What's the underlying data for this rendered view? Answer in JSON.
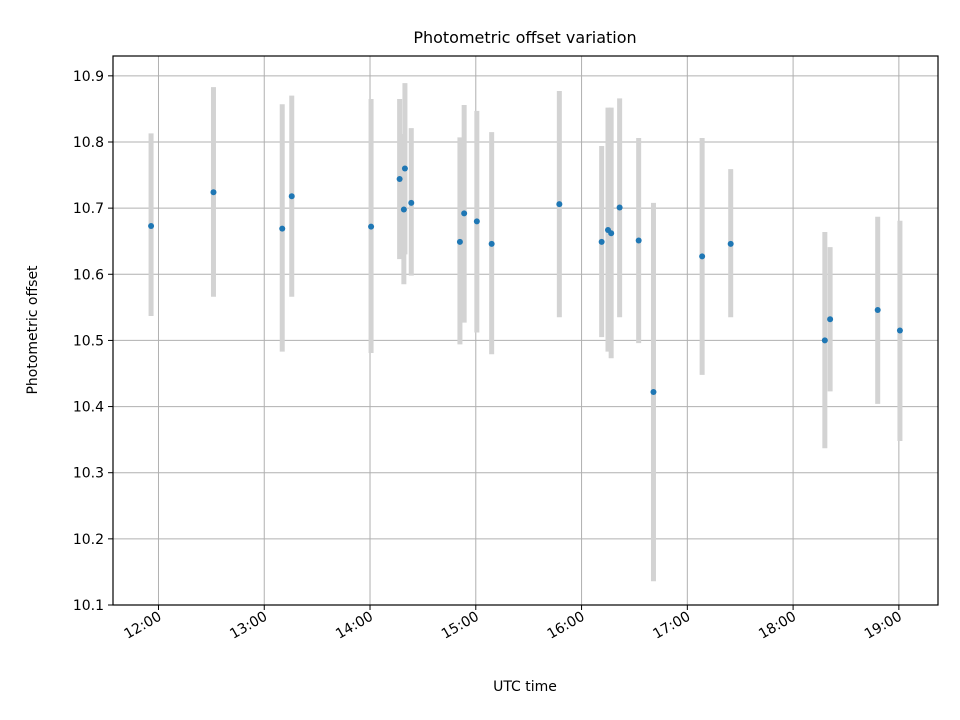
{
  "chart_data": {
    "type": "scatter",
    "title": "Photometric offset variation",
    "xlabel": "UTC time",
    "ylabel": "Photometric offset",
    "xlim": [
      11.57,
      19.37
    ],
    "ylim": [
      10.1,
      10.93
    ],
    "x_ticks": [
      {
        "value": 12,
        "label": "12:00"
      },
      {
        "value": 13,
        "label": "13:00"
      },
      {
        "value": 14,
        "label": "14:00"
      },
      {
        "value": 15,
        "label": "15:00"
      },
      {
        "value": 16,
        "label": "16:00"
      },
      {
        "value": 17,
        "label": "17:00"
      },
      {
        "value": 18,
        "label": "18:00"
      },
      {
        "value": 19,
        "label": "19:00"
      }
    ],
    "y_ticks": [
      {
        "value": 10.1,
        "label": "10.1"
      },
      {
        "value": 10.2,
        "label": "10.2"
      },
      {
        "value": 10.3,
        "label": "10.3"
      },
      {
        "value": 10.4,
        "label": "10.4"
      },
      {
        "value": 10.5,
        "label": "10.5"
      },
      {
        "value": 10.6,
        "label": "10.6"
      },
      {
        "value": 10.7,
        "label": "10.7"
      },
      {
        "value": 10.8,
        "label": "10.8"
      },
      {
        "value": 10.9,
        "label": "10.9"
      }
    ],
    "grid": true,
    "colors": {
      "point": "#1f77b4",
      "errorbar": "#d3d3d3",
      "grid": "#b0b0b0"
    },
    "points": [
      {
        "x": 11.93,
        "y": 10.673,
        "ylow": 10.537,
        "yhigh": 10.813
      },
      {
        "x": 12.52,
        "y": 10.724,
        "ylow": 10.566,
        "yhigh": 10.883
      },
      {
        "x": 13.17,
        "y": 10.669,
        "ylow": 10.483,
        "yhigh": 10.857
      },
      {
        "x": 13.26,
        "y": 10.718,
        "ylow": 10.566,
        "yhigh": 10.87
      },
      {
        "x": 14.01,
        "y": 10.672,
        "ylow": 10.481,
        "yhigh": 10.865
      },
      {
        "x": 14.28,
        "y": 10.744,
        "ylow": 10.623,
        "yhigh": 10.865
      },
      {
        "x": 14.32,
        "y": 10.698,
        "ylow": 10.585,
        "yhigh": 10.812
      },
      {
        "x": 14.33,
        "y": 10.76,
        "ylow": 10.63,
        "yhigh": 10.889
      },
      {
        "x": 14.39,
        "y": 10.708,
        "ylow": 10.598,
        "yhigh": 10.821
      },
      {
        "x": 14.85,
        "y": 10.649,
        "ylow": 10.494,
        "yhigh": 10.807
      },
      {
        "x": 14.89,
        "y": 10.692,
        "ylow": 10.527,
        "yhigh": 10.856
      },
      {
        "x": 15.01,
        "y": 10.68,
        "ylow": 10.512,
        "yhigh": 10.847
      },
      {
        "x": 15.15,
        "y": 10.646,
        "ylow": 10.479,
        "yhigh": 10.815
      },
      {
        "x": 15.79,
        "y": 10.706,
        "ylow": 10.535,
        "yhigh": 10.877
      },
      {
        "x": 16.19,
        "y": 10.649,
        "ylow": 10.505,
        "yhigh": 10.794
      },
      {
        "x": 16.25,
        "y": 10.667,
        "ylow": 10.483,
        "yhigh": 10.852
      },
      {
        "x": 16.28,
        "y": 10.662,
        "ylow": 10.473,
        "yhigh": 10.852
      },
      {
        "x": 16.36,
        "y": 10.701,
        "ylow": 10.535,
        "yhigh": 10.866
      },
      {
        "x": 16.54,
        "y": 10.651,
        "ylow": 10.496,
        "yhigh": 10.806
      },
      {
        "x": 16.68,
        "y": 10.422,
        "ylow": 10.136,
        "yhigh": 10.708
      },
      {
        "x": 17.14,
        "y": 10.627,
        "ylow": 10.448,
        "yhigh": 10.806
      },
      {
        "x": 17.41,
        "y": 10.646,
        "ylow": 10.535,
        "yhigh": 10.759
      },
      {
        "x": 18.3,
        "y": 10.5,
        "ylow": 10.337,
        "yhigh": 10.664
      },
      {
        "x": 18.35,
        "y": 10.532,
        "ylow": 10.423,
        "yhigh": 10.641
      },
      {
        "x": 18.8,
        "y": 10.546,
        "ylow": 10.404,
        "yhigh": 10.687
      },
      {
        "x": 19.01,
        "y": 10.515,
        "ylow": 10.348,
        "yhigh": 10.681
      }
    ]
  }
}
